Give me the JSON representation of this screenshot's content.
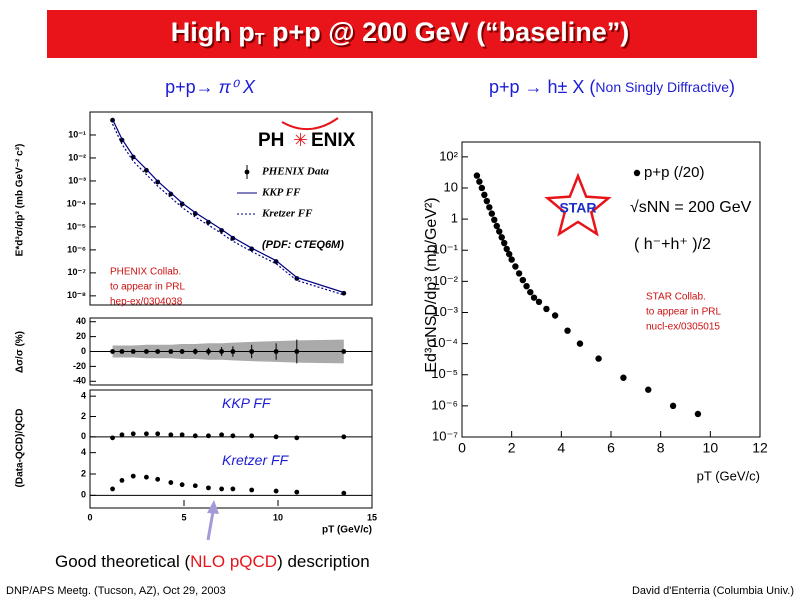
{
  "slide": {
    "title_parts": [
      "High p",
      "T",
      " p+p @ 200 GeV (“baseline”)"
    ],
    "caption_parts": [
      "Good theoretical (",
      "NLO pQCD",
      ") description"
    ],
    "footer_left": "DNP/APS Meetg. (Tucson, AZ), Oct 29, 2003",
    "footer_right": "David d'Enterria (Columbia Univ.)"
  },
  "chart_data": [
    {
      "type": "scatter",
      "title_parts": [
        "p+p→ ",
        "π⁰",
        " X"
      ],
      "log_y": true,
      "logo": [
        "PH",
        "ENIX"
      ],
      "ylabel": "E*d³σ/dp³ (mb GeV⁻² c³)",
      "xlim": [
        0,
        15
      ],
      "ylim": [
        4e-09,
        1
      ],
      "yticks": [
        {
          "value": 0.1,
          "label": "10⁻¹"
        },
        {
          "value": 0.01,
          "label": "10⁻²"
        },
        {
          "value": 0.001,
          "label": "10⁻³"
        },
        {
          "value": 0.0001,
          "label": "10⁻⁴"
        },
        {
          "value": 1e-05,
          "label": "10⁻⁵"
        },
        {
          "value": 1e-06,
          "label": "10⁻⁶"
        },
        {
          "value": 1e-07,
          "label": "10⁻⁷"
        },
        {
          "value": 1e-08,
          "label": "10⁻⁸"
        }
      ],
      "x": [
        1.2,
        1.7,
        2.3,
        3.0,
        3.6,
        4.3,
        4.9,
        5.6,
        6.3,
        7.0,
        7.6,
        8.6,
        9.9,
        11.0,
        13.5
      ],
      "series": [
        {
          "name": "PHENIX Data",
          "color": "#000000",
          "style": "points",
          "values": [
            0.44,
            0.06,
            0.011,
            0.0029,
            0.0009,
            0.00027,
            0.0001,
            3.8e-05,
            1.6e-05,
            7e-06,
            3.2e-06,
            1.1e-06,
            3.1e-07,
            5.7e-08,
            1.3e-08
          ]
        },
        {
          "name": "KKP FF",
          "color": "#000080",
          "style": "line",
          "dash": false,
          "values": [
            0.48,
            0.066,
            0.012,
            0.0032,
            0.00098,
            0.0003,
            0.00011,
            4.2e-05,
            1.8e-05,
            7.7e-06,
            3.5e-06,
            1.2e-06,
            3.4e-07,
            6.3e-08,
            1.4e-08
          ]
        },
        {
          "name": "Kretzer FF",
          "color": "#000080",
          "style": "line",
          "dash": true,
          "values": [
            0.3,
            0.04,
            0.0072,
            0.0019,
            0.0006,
            0.00019,
            7e-05,
            2.7e-05,
            1.2e-05,
            5.2e-06,
            2.4e-06,
            8.5e-07,
            2.5e-07,
            4.7e-08,
            1.1e-08
          ]
        }
      ],
      "pdf_note": "(PDF: CTEQ6M)",
      "notes": [
        "PHENIX Collab.",
        "to appear in PRL",
        "hep-ex/0304038"
      ]
    },
    {
      "type": "scatter",
      "log_y": false,
      "ylabel": "Δσ/σ (%)",
      "xlim": [
        0,
        15
      ],
      "ylim": [
        -45,
        45
      ],
      "yticks": [
        40,
        20,
        0,
        -20,
        -40
      ],
      "x": [
        1.2,
        1.7,
        2.3,
        3.0,
        3.6,
        4.3,
        4.9,
        5.6,
        6.3,
        7.0,
        7.6,
        8.6,
        9.9,
        11.0,
        13.5
      ],
      "band": [
        8,
        8,
        8,
        9,
        9,
        9,
        10,
        10,
        11,
        11,
        12,
        13,
        14,
        15,
        16
      ],
      "series": [
        {
          "color": "#000000",
          "style": "points",
          "values": [
            0,
            0,
            0,
            0,
            0,
            0,
            0,
            0,
            0,
            0,
            0,
            0,
            0,
            0,
            0
          ],
          "errors": [
            1,
            1,
            1,
            2,
            2,
            3,
            3,
            4,
            5,
            6,
            7,
            9,
            11,
            16,
            1
          ]
        }
      ]
    },
    {
      "type": "scatter",
      "log_y": false,
      "ylabel": "(Data-QCD)/QCD",
      "xlim": [
        0,
        15
      ],
      "ylim": [
        -1,
        5
      ],
      "yticks": [
        4,
        2,
        0
      ],
      "x": [
        1.2,
        1.7,
        2.3,
        3.0,
        3.6,
        4.3,
        4.9,
        5.6,
        6.3,
        7.0,
        7.6,
        8.6,
        9.9,
        11.0,
        13.5
      ],
      "label": "KKP  FF",
      "series": [
        {
          "color": "#000000",
          "style": "points",
          "values": [
            -0.1,
            0.2,
            0.3,
            0.3,
            0.3,
            0.2,
            0.2,
            0.1,
            0.1,
            0.2,
            0.1,
            0.1,
            0.0,
            -0.1,
            0.0
          ]
        }
      ]
    },
    {
      "type": "scatter",
      "log_y": false,
      "xlim": [
        0,
        15
      ],
      "ylim": [
        -1,
        5
      ],
      "yticks": [
        4,
        2,
        0
      ],
      "xticks": [
        0,
        5,
        10,
        15
      ],
      "xlabel": "pT (GeV/c)",
      "x": [
        1.2,
        1.7,
        2.3,
        3.0,
        3.6,
        4.3,
        4.9,
        5.6,
        6.3,
        7.0,
        7.6,
        8.6,
        9.9,
        11.0,
        13.5
      ],
      "label": "Kretzer FF",
      "series": [
        {
          "color": "#000000",
          "style": "points",
          "values": [
            0.6,
            1.4,
            1.8,
            1.7,
            1.5,
            1.2,
            1.0,
            0.9,
            0.7,
            0.6,
            0.6,
            0.5,
            0.4,
            0.3,
            0.2
          ]
        }
      ]
    },
    {
      "type": "scatter",
      "title_parts": [
        "p+p → h± X (",
        "Non Singly Diffractive",
        ")"
      ],
      "log_y": true,
      "logo": "STAR",
      "ylabel": "Ed³σNSD/dp³ (mb/GeV²)",
      "xlabel": "pT (GeV/c)",
      "xlim": [
        0,
        12
      ],
      "ylim": [
        1e-07,
        300
      ],
      "yticks": [
        {
          "value": 100,
          "label": "10²"
        },
        10,
        1,
        {
          "value": 0.1,
          "label": "10⁻¹"
        },
        {
          "value": 0.01,
          "label": "10⁻²"
        },
        {
          "value": 0.001,
          "label": "10⁻³"
        },
        {
          "value": 0.0001,
          "label": "10⁻⁴"
        },
        {
          "value": 1e-05,
          "label": "10⁻⁵"
        },
        {
          "value": 1e-06,
          "label": "10⁻⁶"
        },
        {
          "value": 1e-07,
          "label": "10⁻⁷"
        }
      ],
      "xticks": [
        0,
        2,
        4,
        6,
        8,
        10,
        12
      ],
      "x": [
        0.6,
        0.7,
        0.8,
        0.9,
        1.0,
        1.1,
        1.2,
        1.3,
        1.4,
        1.5,
        1.6,
        1.7,
        1.8,
        1.9,
        2.0,
        2.15,
        2.3,
        2.45,
        2.6,
        2.75,
        2.9,
        3.1,
        3.4,
        3.75,
        4.25,
        4.75,
        5.5,
        6.5,
        7.5,
        8.5,
        9.5
      ],
      "series": [
        {
          "name": "p+p (/20)",
          "color": "#000000",
          "style": "points",
          "values": [
            25,
            16,
            10,
            6,
            3.8,
            2.4,
            1.5,
            0.95,
            0.6,
            0.4,
            0.26,
            0.17,
            0.11,
            0.075,
            0.05,
            0.03,
            0.018,
            0.011,
            0.007,
            0.0045,
            0.003,
            0.0022,
            0.0013,
            0.0008,
            0.00026,
            0.0001,
            3.3e-05,
            8e-06,
            3.3e-06,
            1e-06,
            5.5e-07
          ]
        }
      ],
      "energy": "√sNN = 200 GeV",
      "particles": "( h⁻+h⁺ )/2",
      "notes": [
        "STAR Collab.",
        "to appear in PRL",
        "nucl-ex/0305015"
      ]
    }
  ]
}
